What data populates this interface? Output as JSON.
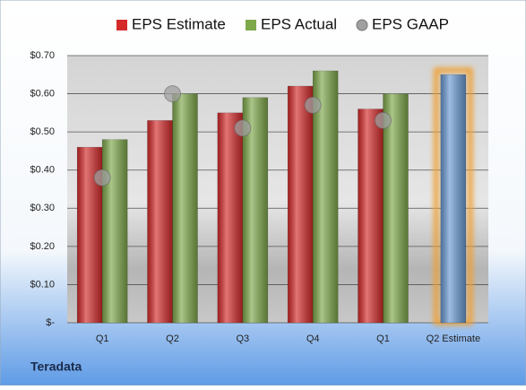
{
  "chart_data": {
    "type": "bar",
    "categories": [
      "Q1",
      "Q2",
      "Q3",
      "Q4",
      "Q1",
      "Q2 Estimate"
    ],
    "series": [
      {
        "name": "EPS Estimate",
        "color": "#d42a2a",
        "colors": [
          "#d42a2a",
          "#d42a2a",
          "#d42a2a",
          "#d42a2a",
          "#d42a2a",
          "#6a9ad4"
        ],
        "values": [
          0.46,
          0.53,
          0.55,
          0.62,
          0.56,
          0.65
        ]
      },
      {
        "name": "EPS Actual",
        "color": "#7ea84a",
        "values": [
          0.48,
          0.6,
          0.59,
          0.66,
          0.6,
          null
        ]
      },
      {
        "name": "EPS GAAP",
        "color": "#a0a0a0",
        "marker": "circle",
        "values": [
          0.38,
          0.6,
          0.51,
          0.57,
          0.53,
          null
        ]
      }
    ],
    "ylim": [
      0,
      0.7
    ],
    "yticks": [
      {
        "value": 0,
        "label": "$-"
      },
      {
        "value": 0.1,
        "label": "$0.10"
      },
      {
        "value": 0.2,
        "label": "$0.20"
      },
      {
        "value": 0.3,
        "label": "$0.30"
      },
      {
        "value": 0.4,
        "label": "$0.40"
      },
      {
        "value": 0.5,
        "label": "$0.50"
      },
      {
        "value": 0.6,
        "label": "$0.60"
      },
      {
        "value": 0.7,
        "label": "$0.70"
      }
    ],
    "grid": true,
    "footer": "Teradata"
  }
}
